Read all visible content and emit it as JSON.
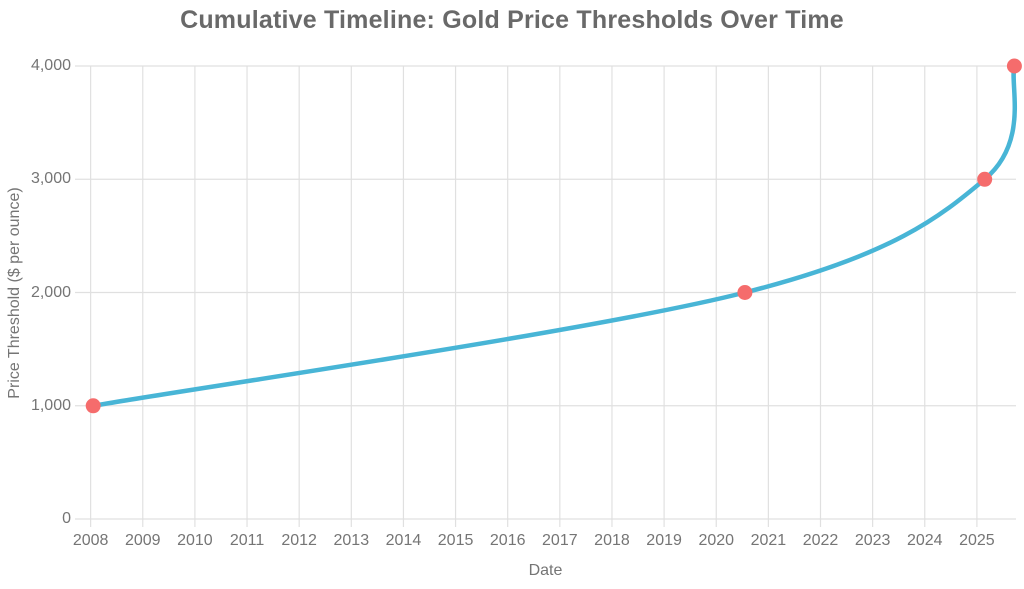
{
  "chart_data": {
    "type": "line",
    "title": "Cumulative Timeline: Gold Price Thresholds Over Time",
    "xlabel": "Date",
    "ylabel": "Price Threshold ($ per ounce)",
    "x_range": [
      2007.7,
      2025.75
    ],
    "y_range": [
      0,
      4000
    ],
    "x_tick_values": [
      2008,
      2009,
      2010,
      2011,
      2012,
      2013,
      2014,
      2015,
      2016,
      2017,
      2018,
      2019,
      2020,
      2021,
      2022,
      2023,
      2024,
      2025
    ],
    "x_tick_labels": [
      "2008",
      "2009",
      "2010",
      "2011",
      "2012",
      "2013",
      "2014",
      "2015",
      "2016",
      "2017",
      "2018",
      "2019",
      "2020",
      "2021",
      "2022",
      "2023",
      "2024",
      "2025"
    ],
    "y_tick_values": [
      0,
      1000,
      2000,
      3000,
      4000
    ],
    "y_tick_labels": [
      "0",
      "1,000",
      "2,000",
      "3,000",
      "4,000"
    ],
    "points": [
      {
        "x": 2008.05,
        "y": 1000
      },
      {
        "x": 2020.55,
        "y": 2000
      },
      {
        "x": 2025.15,
        "y": 3000
      },
      {
        "x": 2025.72,
        "y": 4000
      }
    ],
    "grid": true,
    "legend": false,
    "line_smoothing": true,
    "colors": {
      "line": "#48b5d6",
      "point": "#f56c6c",
      "grid": "#e0e0e0",
      "tick_text": "#757575",
      "title_text": "#696969"
    }
  }
}
